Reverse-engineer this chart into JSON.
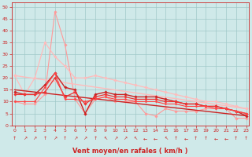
{
  "background_color": "#cfe9e9",
  "grid_color": "#a0c8c8",
  "x_label": "Vent moyen/en rafales ( km/h )",
  "x_ticks": [
    0,
    1,
    2,
    3,
    4,
    5,
    6,
    7,
    8,
    9,
    10,
    11,
    12,
    13,
    14,
    15,
    16,
    17,
    18,
    19,
    20,
    21,
    22,
    23
  ],
  "ylim": [
    0,
    52
  ],
  "yticks": [
    0,
    5,
    10,
    15,
    20,
    25,
    30,
    35,
    40,
    45,
    50
  ],
  "xlim": [
    -0.3,
    23.3
  ],
  "lines": [
    {
      "x": [
        0,
        1,
        2,
        3,
        4,
        5,
        6,
        7,
        8,
        9,
        10,
        11,
        12,
        13,
        14,
        15,
        16,
        17,
        18,
        19,
        20,
        21,
        22,
        23
      ],
      "y": [
        10,
        9,
        9,
        13,
        48,
        34,
        11,
        5,
        11,
        12,
        10,
        10,
        10,
        5,
        4,
        7,
        6,
        6,
        6,
        7,
        7,
        7,
        3,
        3
      ],
      "color": "#ff9999",
      "lw": 0.8,
      "marker": "D",
      "ms": 1.8,
      "zorder": 2
    },
    {
      "x": [
        0,
        23
      ],
      "y": [
        21,
        7
      ],
      "color": "#ffbbbb",
      "lw": 1.0,
      "marker": "D",
      "ms": 1.8,
      "zorder": 2,
      "linestyle": "-"
    },
    {
      "x": [
        0,
        1,
        2,
        3,
        4,
        5,
        6,
        7,
        8,
        9,
        10,
        11,
        12,
        13,
        14,
        15,
        16,
        17,
        18,
        19,
        20,
        21,
        22,
        23
      ],
      "y": [
        21,
        13,
        20,
        35,
        29,
        25,
        20,
        20,
        21,
        20,
        19,
        18,
        17,
        16,
        15,
        14,
        13,
        12,
        11,
        10,
        10,
        9,
        8,
        7
      ],
      "color": "#ffbbbb",
      "lw": 0.9,
      "marker": "D",
      "ms": 1.8,
      "zorder": 2
    },
    {
      "x": [
        0,
        23
      ],
      "y": [
        15,
        4
      ],
      "color": "#cc2222",
      "lw": 1.0,
      "marker": null,
      "ms": 0,
      "zorder": 2,
      "linestyle": "-"
    },
    {
      "x": [
        0,
        1,
        2,
        3,
        4,
        5,
        6,
        7,
        8,
        9,
        10,
        11,
        12,
        13,
        14,
        15,
        16,
        17,
        18,
        19,
        20,
        21,
        22,
        23
      ],
      "y": [
        14,
        13,
        13,
        17,
        22,
        16,
        15,
        5,
        13,
        14,
        13,
        13,
        12,
        12,
        12,
        11,
        10,
        9,
        9,
        8,
        8,
        7,
        6,
        4
      ],
      "color": "#cc2222",
      "lw": 1.0,
      "marker": "D",
      "ms": 1.8,
      "zorder": 3
    },
    {
      "x": [
        0,
        1,
        2,
        3,
        4,
        5,
        6,
        7,
        8,
        9,
        10,
        11,
        12,
        13,
        14,
        15,
        16,
        17,
        18,
        19,
        20,
        21,
        22,
        23
      ],
      "y": [
        13,
        13,
        13,
        14,
        20,
        12,
        14,
        9,
        12,
        13,
        12,
        12,
        11,
        11,
        11,
        10,
        10,
        9,
        9,
        8,
        8,
        7,
        6,
        5
      ],
      "color": "#ee3333",
      "lw": 0.9,
      "marker": "D",
      "ms": 1.8,
      "zorder": 3
    },
    {
      "x": [
        0,
        1,
        2,
        3,
        4,
        5,
        6,
        7,
        8,
        9,
        10,
        11,
        12,
        13,
        14,
        15,
        16,
        17,
        18,
        19,
        20,
        21,
        22,
        23
      ],
      "y": [
        10,
        10,
        10,
        16,
        22,
        11,
        11,
        10,
        11,
        12,
        11,
        11,
        10,
        10,
        10,
        9,
        9,
        8,
        8,
        8,
        7,
        7,
        6,
        5
      ],
      "color": "#ff4444",
      "lw": 0.8,
      "marker": "D",
      "ms": 1.5,
      "zorder": 3
    }
  ],
  "wind_dirs": [
    "↑",
    "↗",
    "↗",
    "↑",
    "↗",
    "↑",
    "↗",
    "↗",
    "↑",
    "↖",
    "↗",
    "↗",
    "↖",
    "←",
    "←",
    "↖",
    "↑",
    "←",
    "↑",
    "↑",
    "←",
    "←",
    "↑",
    "↑"
  ]
}
